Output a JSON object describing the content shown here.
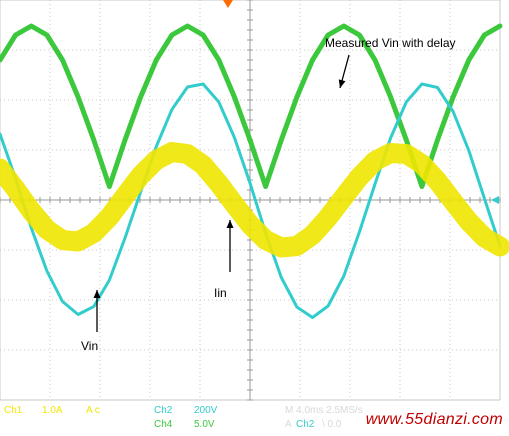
{
  "chart_data": {
    "type": "line",
    "title": "",
    "xlabel": "",
    "ylabel": "",
    "xlim": [
      0,
      40
    ],
    "ylim": [
      -4,
      4
    ],
    "grid": true,
    "x_divisions": 10,
    "y_divisions": 8,
    "time_per_div_ms": 4.0,
    "annotations": [
      {
        "text": "Measured Vin with delay",
        "target": "Ch4"
      },
      {
        "text": "Iin",
        "target": "Ch1"
      },
      {
        "text": "Vin",
        "target": "Ch2"
      }
    ],
    "series": [
      {
        "name": "Ch4",
        "color": "#3cc83c",
        "x": [
          0,
          1.25,
          2.5,
          3.75,
          5,
          6.25,
          7.5,
          8.75,
          10,
          11.25,
          12.5,
          13.75,
          15,
          16.25,
          17.5,
          18.75,
          20,
          21.25,
          22.5,
          23.75,
          25,
          26.25,
          27.5,
          28.75,
          30,
          31.25,
          32.5,
          33.75,
          35,
          36.25,
          37.5,
          38.75,
          40
        ],
        "values": [
          2.8,
          3.3,
          3.48,
          3.3,
          2.8,
          2.06,
          1.2,
          0.27,
          1.2,
          2.06,
          2.8,
          3.3,
          3.48,
          3.3,
          2.8,
          2.06,
          1.2,
          0.27,
          1.2,
          2.06,
          2.8,
          3.3,
          3.48,
          3.3,
          2.8,
          2.06,
          1.2,
          0.27,
          1.2,
          2.06,
          2.8,
          3.3,
          3.48
        ]
      },
      {
        "name": "Ch2",
        "color": "#33cccc",
        "x": [
          0,
          1.25,
          2.5,
          3.75,
          5,
          6.25,
          7.5,
          8.75,
          10,
          11.25,
          12.5,
          13.75,
          15,
          16.25,
          17.5,
          18.75,
          20,
          21.25,
          22.5,
          23.75,
          25,
          26.25,
          27.5,
          28.75,
          30,
          31.25,
          32.5,
          33.75,
          35,
          36.25,
          37.5,
          38.75,
          40
        ],
        "values": [
          1.32,
          0.43,
          -0.56,
          -1.42,
          -2.03,
          -2.29,
          -2.13,
          -1.6,
          -0.76,
          0.16,
          1.07,
          1.81,
          2.26,
          2.32,
          1.96,
          1.25,
          0.34,
          -0.66,
          -1.55,
          -2.14,
          -2.35,
          -2.12,
          -1.52,
          -0.64,
          0.32,
          1.24,
          1.96,
          2.32,
          2.25,
          1.77,
          0.99,
          0.03,
          -0.92
        ]
      },
      {
        "name": "Ch1",
        "color": "#f0e600",
        "x": [
          0,
          1.25,
          2.5,
          3.75,
          5,
          6.25,
          7.5,
          8.75,
          10,
          11.25,
          12.5,
          13.75,
          15,
          16.25,
          17.5,
          18.75,
          20,
          21.25,
          22.5,
          23.75,
          25,
          26.25,
          27.5,
          28.75,
          30,
          31.25,
          32.5,
          33.75,
          35,
          36.25,
          37.5,
          38.75,
          40
        ],
        "values": [
          0.63,
          0.22,
          -0.22,
          -0.59,
          -0.8,
          -0.83,
          -0.66,
          -0.34,
          0.08,
          0.49,
          0.8,
          0.96,
          0.92,
          0.7,
          0.33,
          -0.09,
          -0.49,
          -0.8,
          -0.95,
          -0.92,
          -0.7,
          -0.35,
          0.06,
          0.46,
          0.78,
          0.94,
          0.92,
          0.72,
          0.38,
          -0.03,
          -0.43,
          -0.75,
          -0.93
        ]
      }
    ]
  },
  "annotations": {
    "measured": "Measured Vin with delay",
    "iin": "Iin",
    "vin": "Vin"
  },
  "status": {
    "ch1_label": "Ch1",
    "ch1_scale": "1.0A",
    "ch1_coupling": "A c",
    "ch2_label": "Ch2",
    "ch2_scale": "200V",
    "ch4_label": "Ch4",
    "ch4_scale": "5.0V",
    "timebase": "M 4.0ms 2.5MS/s",
    "trigger": "A",
    "trigger_source": "Ch2",
    "trigger_level": "\\ 0.0"
  },
  "watermark": "www.55dianzi.com",
  "colors": {
    "ch1": "#f0e600",
    "ch2": "#33cccc",
    "ch4": "#3cc83c",
    "grid": "#c8c8c8",
    "marker": "#ff6a00",
    "watermark": "#c00000"
  }
}
